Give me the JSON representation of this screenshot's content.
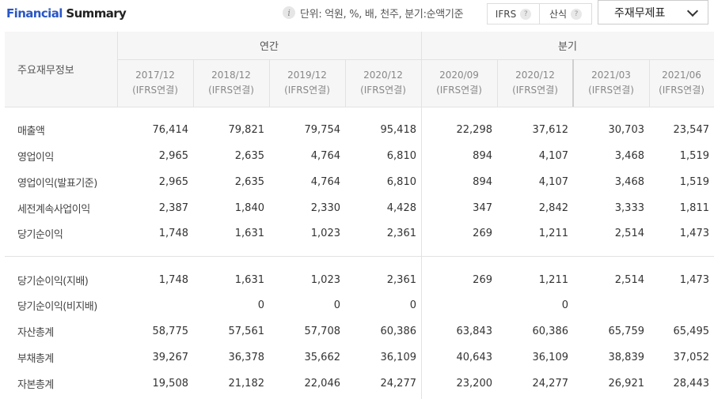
{
  "header": {
    "title_part1": "Financial",
    "title_part2": "Summary",
    "info_icon": "i",
    "unit_text": "단위: 억원, %, 배, 천주, 분기:순액기준",
    "toggle": [
      {
        "label": "IFRS",
        "help": "?"
      },
      {
        "label": "산식",
        "help": "?"
      }
    ],
    "select_value": "주재무제표"
  },
  "table": {
    "row_header": "주요재무정보",
    "groups": {
      "annual": "연간",
      "quarter": "분기"
    },
    "columns": [
      {
        "period": "2017/12",
        "basis": "(IFRS연결)"
      },
      {
        "period": "2018/12",
        "basis": "(IFRS연결)"
      },
      {
        "period": "2019/12",
        "basis": "(IFRS연결)"
      },
      {
        "period": "2020/12",
        "basis": "(IFRS연결)"
      },
      {
        "period": "2020/09",
        "basis": "(IFRS연결)"
      },
      {
        "period": "2020/12",
        "basis": "(IFRS연결)"
      },
      {
        "period": "2021/03",
        "basis": "(IFRS연결)"
      },
      {
        "period": "2021/06",
        "basis": "(IFRS연결)"
      }
    ],
    "rows": [
      {
        "label": "매출액",
        "values": [
          "76,414",
          "79,821",
          "79,754",
          "95,418",
          "22,298",
          "37,612",
          "30,703",
          "23,547"
        ]
      },
      {
        "label": "영업이익",
        "values": [
          "2,965",
          "2,635",
          "4,764",
          "6,810",
          "894",
          "4,107",
          "3,468",
          "1,519"
        ]
      },
      {
        "label": "영업이익(발표기준)",
        "values": [
          "2,965",
          "2,635",
          "4,764",
          "6,810",
          "894",
          "4,107",
          "3,468",
          "1,519"
        ]
      },
      {
        "label": "세전계속사업이익",
        "values": [
          "2,387",
          "1,840",
          "2,330",
          "4,428",
          "347",
          "2,842",
          "3,333",
          "1,811"
        ]
      },
      {
        "label": "당기순이익",
        "values": [
          "1,748",
          "1,631",
          "1,023",
          "2,361",
          "269",
          "1,211",
          "2,514",
          "1,473"
        ]
      },
      {
        "label": "당기순이익(지배)",
        "values": [
          "1,748",
          "1,631",
          "1,023",
          "2,361",
          "269",
          "1,211",
          "2,514",
          "1,473"
        ]
      },
      {
        "label": "당기순이익(비지배)",
        "values": [
          "",
          "0",
          "0",
          "0",
          "",
          "0",
          "",
          ""
        ]
      },
      {
        "label": "자산총계",
        "values": [
          "58,775",
          "57,561",
          "57,708",
          "60,386",
          "63,843",
          "60,386",
          "65,759",
          "65,495"
        ]
      },
      {
        "label": "부채총계",
        "values": [
          "39,267",
          "36,378",
          "35,662",
          "36,109",
          "40,643",
          "36,109",
          "38,839",
          "37,052"
        ]
      },
      {
        "label": "자본총계",
        "values": [
          "19,508",
          "21,182",
          "22,046",
          "24,277",
          "23,200",
          "24,277",
          "26,921",
          "28,443"
        ]
      }
    ]
  }
}
